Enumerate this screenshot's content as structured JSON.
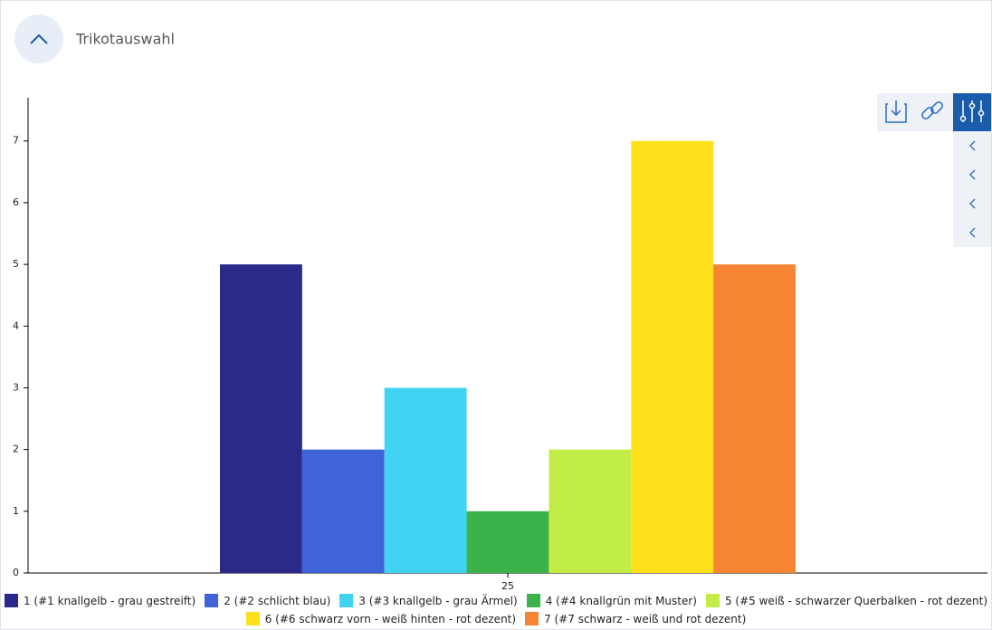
{
  "header": {
    "title": "Trikotauswahl"
  },
  "chart_data": {
    "type": "bar",
    "categories": [
      "25"
    ],
    "series": [
      {
        "name": "1 (#1 knallgelb - grau gestreift)",
        "color": "#2b2a8b",
        "values": [
          5
        ]
      },
      {
        "name": "2 (#2 schlicht blau)",
        "color": "#4163d8",
        "values": [
          2
        ]
      },
      {
        "name": "3 (#3 knallgelb - grau Ärmel)",
        "color": "#41d3f2",
        "values": [
          3
        ]
      },
      {
        "name": "4 (#4 knallgrün mit Muster)",
        "color": "#3bb34a",
        "values": [
          1
        ]
      },
      {
        "name": "5 (#5 weiß - schwarzer Querbalken - rot dezent)",
        "color": "#c2ec46",
        "values": [
          2
        ]
      },
      {
        "name": "6 (#6 schwarz vorn - weiß hinten - rot dezent)",
        "color": "#fde01a",
        "values": [
          7
        ]
      },
      {
        "name": "7 (#7 schwarz - weiß und rot dezent)",
        "color": "#f58433",
        "values": [
          5
        ]
      }
    ],
    "ylim": [
      0,
      7.7
    ],
    "yticks": [
      0,
      1,
      2,
      3,
      4,
      5,
      6,
      7
    ],
    "grid": false,
    "legend": "bottom"
  }
}
